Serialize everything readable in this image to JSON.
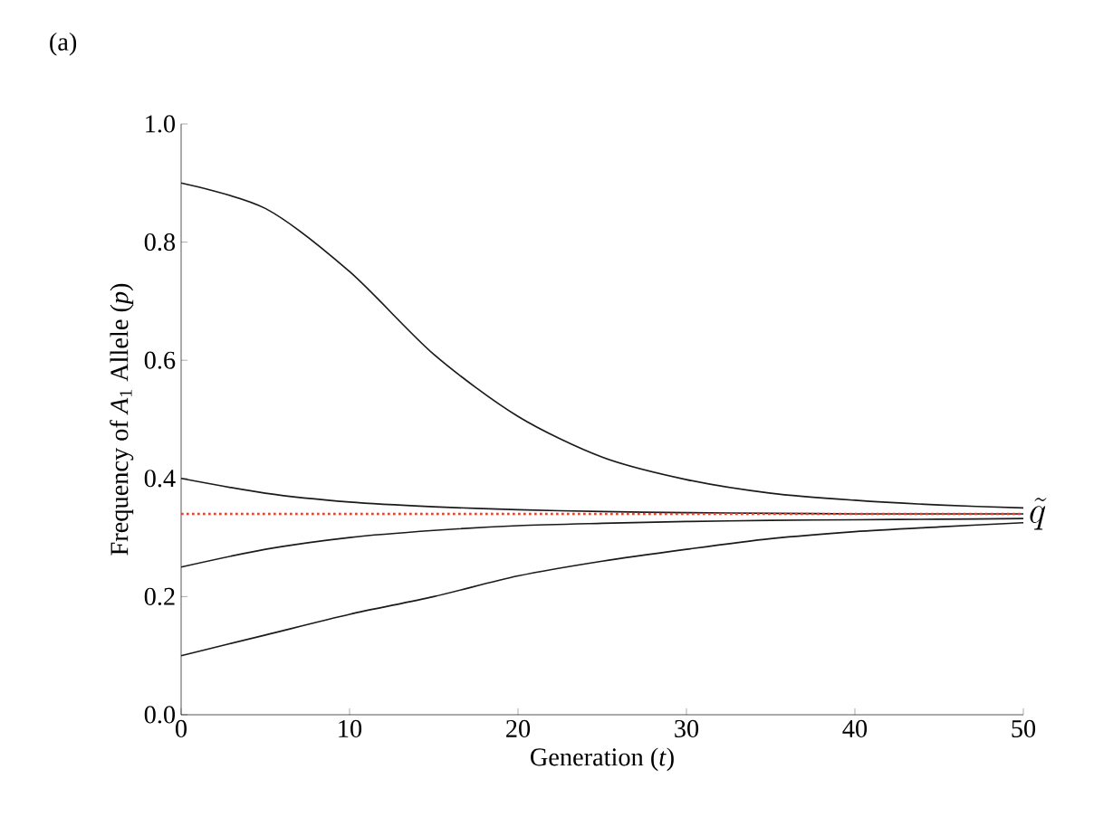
{
  "chart_data": {
    "type": "line",
    "xlabel": "Generation (*t*)",
    "ylabel": "Frequency of *A*$_{1}$ Allele (*p*)",
    "annotations": [
      "(a)"
    ],
    "x": [
      0,
      5,
      10,
      15,
      20,
      25,
      30,
      35,
      40,
      45,
      50
    ],
    "series": [
      {
        "color": "#1a1a1a",
        "values": [
          0.9,
          0.857,
          0.75,
          0.61,
          0.505,
          0.436,
          0.398,
          0.375,
          0.363,
          0.355,
          0.35
        ]
      },
      {
        "color": "#1a1a1a",
        "values": [
          0.4,
          0.375,
          0.36,
          0.352,
          0.347,
          0.344,
          0.342,
          0.341,
          0.34,
          0.34,
          0.34
        ]
      },
      {
        "color": "#1a1a1a",
        "values": [
          0.25,
          0.28,
          0.3,
          0.312,
          0.32,
          0.324,
          0.327,
          0.329,
          0.33,
          0.331,
          0.332
        ]
      },
      {
        "color": "#1a1a1a",
        "values": [
          0.1,
          0.135,
          0.17,
          0.2,
          0.235,
          0.26,
          0.28,
          0.298,
          0.31,
          0.318,
          0.325
        ]
      }
    ],
    "ref_lines": [
      {
        "axis": "y",
        "value": 0.34,
        "label": "\\tilde{q}",
        "color": "#e8402a",
        "line_style": "dotted"
      }
    ],
    "xlim": [
      0,
      50
    ],
    "ylim": [
      0,
      1
    ],
    "xticks": [
      0,
      10,
      20,
      30,
      40,
      50
    ],
    "yticks": [
      {
        "value": 0,
        "label": "0.0"
      },
      0.2,
      0.4,
      0.6,
      0.8,
      {
        "value": 1,
        "label": "1.0"
      }
    ],
    "grid": false,
    "marker": "none",
    "line_style": "solid"
  }
}
